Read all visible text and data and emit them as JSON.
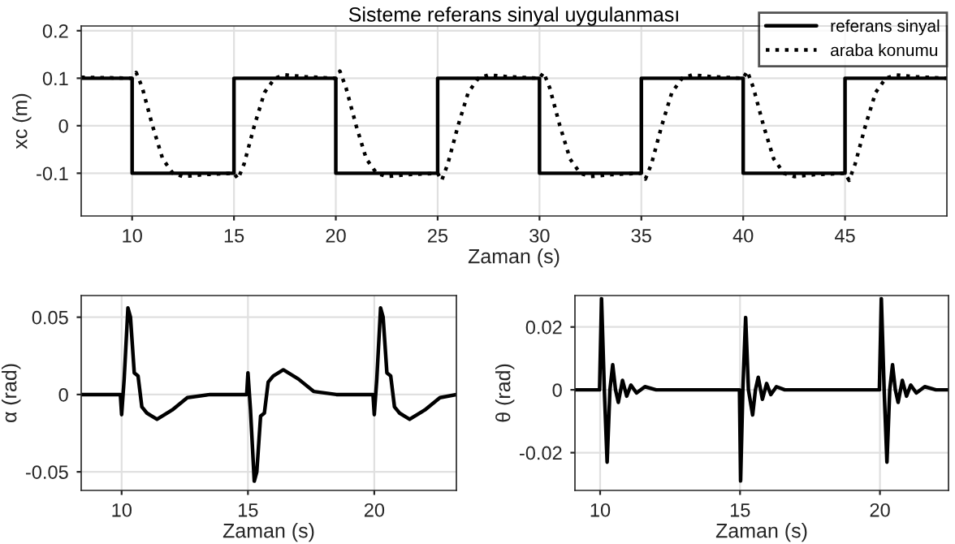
{
  "chart_data": [
    {
      "type": "line",
      "title": "Sisteme referans sinyal uygulanması",
      "xlabel": "Zaman (s)",
      "ylabel": "xc (m)",
      "xlim": [
        7.5,
        50
      ],
      "ylim": [
        -0.19,
        0.21
      ],
      "xticks": [
        10,
        15,
        20,
        25,
        30,
        35,
        40,
        45
      ],
      "yticks": [
        -0.1,
        0,
        0.1,
        0.2
      ],
      "grid": true,
      "legend": "top right",
      "series": [
        {
          "name": "referans sinyal",
          "color": "#000000",
          "line_style": "solid",
          "x": [
            7.5,
            10,
            10,
            15,
            15,
            20,
            20,
            25,
            25,
            30,
            30,
            35,
            35,
            40,
            40,
            45,
            45,
            50
          ],
          "values": [
            0.1,
            0.1,
            -0.1,
            -0.1,
            0.1,
            0.1,
            -0.1,
            -0.1,
            0.1,
            0.1,
            -0.1,
            -0.1,
            0.1,
            0.1,
            -0.1,
            -0.1,
            0.1,
            0.1
          ]
        },
        {
          "name": "araba konumu",
          "color": "#000000",
          "line_style": "dotted",
          "x": [
            7.5,
            10,
            10.2,
            10.5,
            11,
            11.5,
            12,
            12.5,
            13.5,
            15,
            15.2,
            15.5,
            16,
            16.5,
            17,
            17.5,
            18.5,
            20,
            20.2,
            20.5,
            21,
            21.5,
            22,
            22.5,
            23.5,
            25,
            25.2,
            25.5,
            26,
            26.5,
            27,
            27.5,
            28.5,
            30,
            30.2,
            30.5,
            31,
            31.5,
            32,
            32.5,
            33.5,
            35,
            35.2,
            35.5,
            36,
            36.5,
            37,
            37.5,
            38.5,
            40,
            40.2,
            40.5,
            41,
            41.5,
            42,
            42.5,
            43.5,
            45,
            45.2,
            45.5,
            46,
            46.5,
            47,
            47.5,
            48.5,
            50
          ],
          "values": [
            0.102,
            0.1,
            0.112,
            0.08,
            0.0,
            -0.07,
            -0.1,
            -0.107,
            -0.103,
            -0.1,
            -0.112,
            -0.08,
            0.0,
            0.07,
            0.1,
            0.107,
            0.103,
            0.1,
            0.115,
            0.08,
            0.0,
            -0.07,
            -0.1,
            -0.107,
            -0.103,
            -0.1,
            -0.115,
            -0.08,
            0.0,
            0.07,
            0.1,
            0.107,
            0.103,
            0.1,
            0.112,
            0.08,
            0.0,
            -0.07,
            -0.1,
            -0.107,
            -0.103,
            -0.1,
            -0.112,
            -0.08,
            0.0,
            0.07,
            0.1,
            0.107,
            0.103,
            0.1,
            0.115,
            0.08,
            0.0,
            -0.07,
            -0.1,
            -0.107,
            -0.103,
            -0.1,
            -0.115,
            -0.08,
            0.0,
            0.07,
            0.1,
            0.107,
            0.103,
            0.1
          ]
        }
      ]
    },
    {
      "type": "line",
      "xlabel": "Zaman (s)",
      "ylabel": "α (rad)",
      "xlim": [
        8.4,
        23.25
      ],
      "ylim": [
        -0.062,
        0.064
      ],
      "xticks": [
        10,
        15,
        20
      ],
      "yticks": [
        -0.05,
        0,
        0.05
      ],
      "grid": true,
      "series": [
        {
          "color": "#000000",
          "line_style": "solid",
          "x": [
            8.4,
            9.95,
            10.0,
            10.1,
            10.25,
            10.35,
            10.5,
            10.65,
            10.8,
            11.0,
            11.4,
            12.0,
            12.6,
            13.5,
            14.95,
            15.0,
            15.1,
            15.25,
            15.35,
            15.5,
            15.65,
            15.8,
            16.0,
            16.4,
            17.0,
            17.6,
            18.5,
            19.95,
            20.0,
            20.1,
            20.25,
            20.35,
            20.5,
            20.65,
            20.8,
            21.0,
            21.4,
            22.0,
            22.6,
            23.25
          ],
          "values": [
            0,
            0,
            -0.013,
            0.01,
            0.056,
            0.05,
            0.014,
            0.012,
            -0.008,
            -0.012,
            -0.016,
            -0.01,
            -0.002,
            0,
            0,
            0.014,
            -0.01,
            -0.056,
            -0.05,
            -0.014,
            -0.012,
            0.008,
            0.012,
            0.016,
            0.01,
            0.002,
            0,
            0,
            -0.013,
            0.01,
            0.056,
            0.05,
            0.014,
            0.012,
            -0.008,
            -0.012,
            -0.016,
            -0.01,
            -0.002,
            0
          ]
        }
      ]
    },
    {
      "type": "line",
      "xlabel": "Zaman (s)",
      "ylabel": "θ (rad)",
      "xlim": [
        9.1,
        22.45
      ],
      "ylim": [
        -0.032,
        0.03
      ],
      "xticks": [
        10,
        15,
        20
      ],
      "yticks": [
        -0.02,
        0,
        0.02
      ],
      "grid": true,
      "series": [
        {
          "color": "#000000",
          "line_style": "solid",
          "x": [
            9.1,
            9.98,
            10.05,
            10.15,
            10.25,
            10.35,
            10.45,
            10.55,
            10.65,
            10.8,
            10.95,
            11.1,
            11.3,
            11.6,
            12.0,
            14.98,
            15.02,
            15.1,
            15.2,
            15.3,
            15.45,
            15.55,
            15.65,
            15.8,
            15.95,
            16.1,
            16.3,
            16.6,
            17.0,
            19.98,
            20.05,
            20.15,
            20.25,
            20.35,
            20.45,
            20.55,
            20.65,
            20.8,
            20.95,
            21.1,
            21.3,
            21.6,
            22.0,
            22.45
          ],
          "values": [
            0,
            0,
            0.029,
            0,
            -0.023,
            0,
            0.008,
            0,
            -0.004,
            0.003,
            -0.002,
            0.0015,
            -0.001,
            0.001,
            0,
            0,
            -0.029,
            0,
            0.023,
            0,
            -0.008,
            0,
            0.004,
            -0.003,
            0.002,
            -0.0015,
            0.001,
            0,
            0,
            0,
            0.029,
            0,
            -0.023,
            0,
            0.008,
            0,
            -0.004,
            0.003,
            -0.002,
            0.0015,
            -0.001,
            0.001,
            0,
            0
          ]
        }
      ]
    }
  ]
}
